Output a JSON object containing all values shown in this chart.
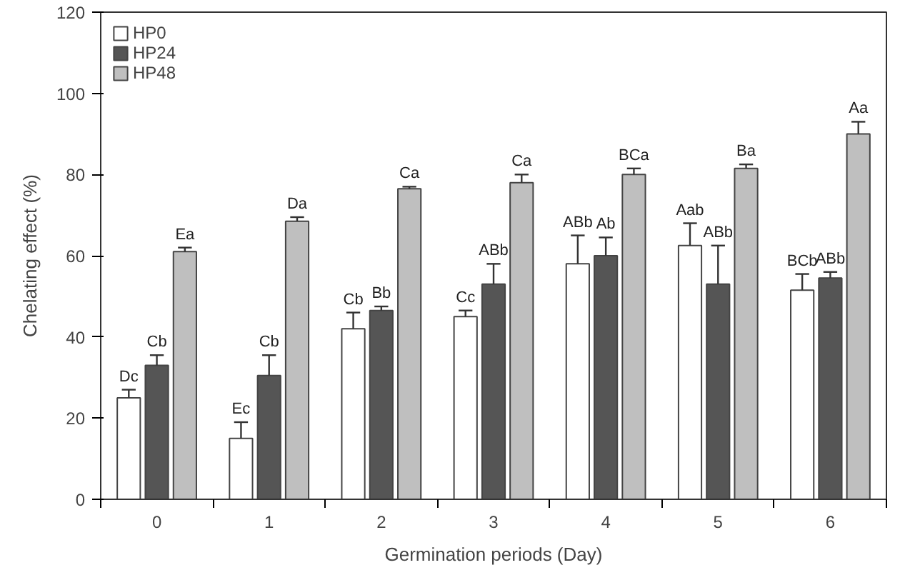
{
  "chart_data": {
    "type": "bar",
    "xlabel": "Germination periods (Day)",
    "ylabel": "Chelating effect (%)",
    "categories": [
      "0",
      "1",
      "2",
      "3",
      "4",
      "5",
      "6"
    ],
    "ylim": [
      0,
      120
    ],
    "yticks": [
      0,
      20,
      40,
      60,
      80,
      100,
      120
    ],
    "grid": false,
    "legend": "top left",
    "series": [
      {
        "name": "HP0",
        "color": "#ffffff",
        "values": [
          25,
          15,
          42,
          45,
          58,
          62.5,
          51.5
        ],
        "errors": [
          2,
          4,
          4,
          1.5,
          7,
          5.5,
          4
        ],
        "value_labels": [
          "Dc",
          "Ec",
          "Cb",
          "Cc",
          "ABb",
          "Aab",
          "BCb"
        ]
      },
      {
        "name": "HP24",
        "color": "#555555",
        "values": [
          33,
          30.5,
          46.5,
          53,
          60,
          53,
          54.5
        ],
        "errors": [
          2.5,
          5,
          1,
          5,
          4.5,
          9.5,
          1.5
        ],
        "value_labels": [
          "Cb",
          "Cb",
          "Bb",
          "ABb",
          "Ab",
          "ABb",
          "ABb"
        ]
      },
      {
        "name": "HP48",
        "color": "#bfbfbf",
        "values": [
          61,
          68.5,
          76.5,
          78,
          80,
          81.5,
          90
        ],
        "errors": [
          1,
          1,
          0.5,
          2,
          1.5,
          1,
          3
        ],
        "value_labels": [
          "Ea",
          "Da",
          "Ca",
          "Ca",
          "BCa",
          "Ba",
          "Aa"
        ]
      }
    ]
  }
}
